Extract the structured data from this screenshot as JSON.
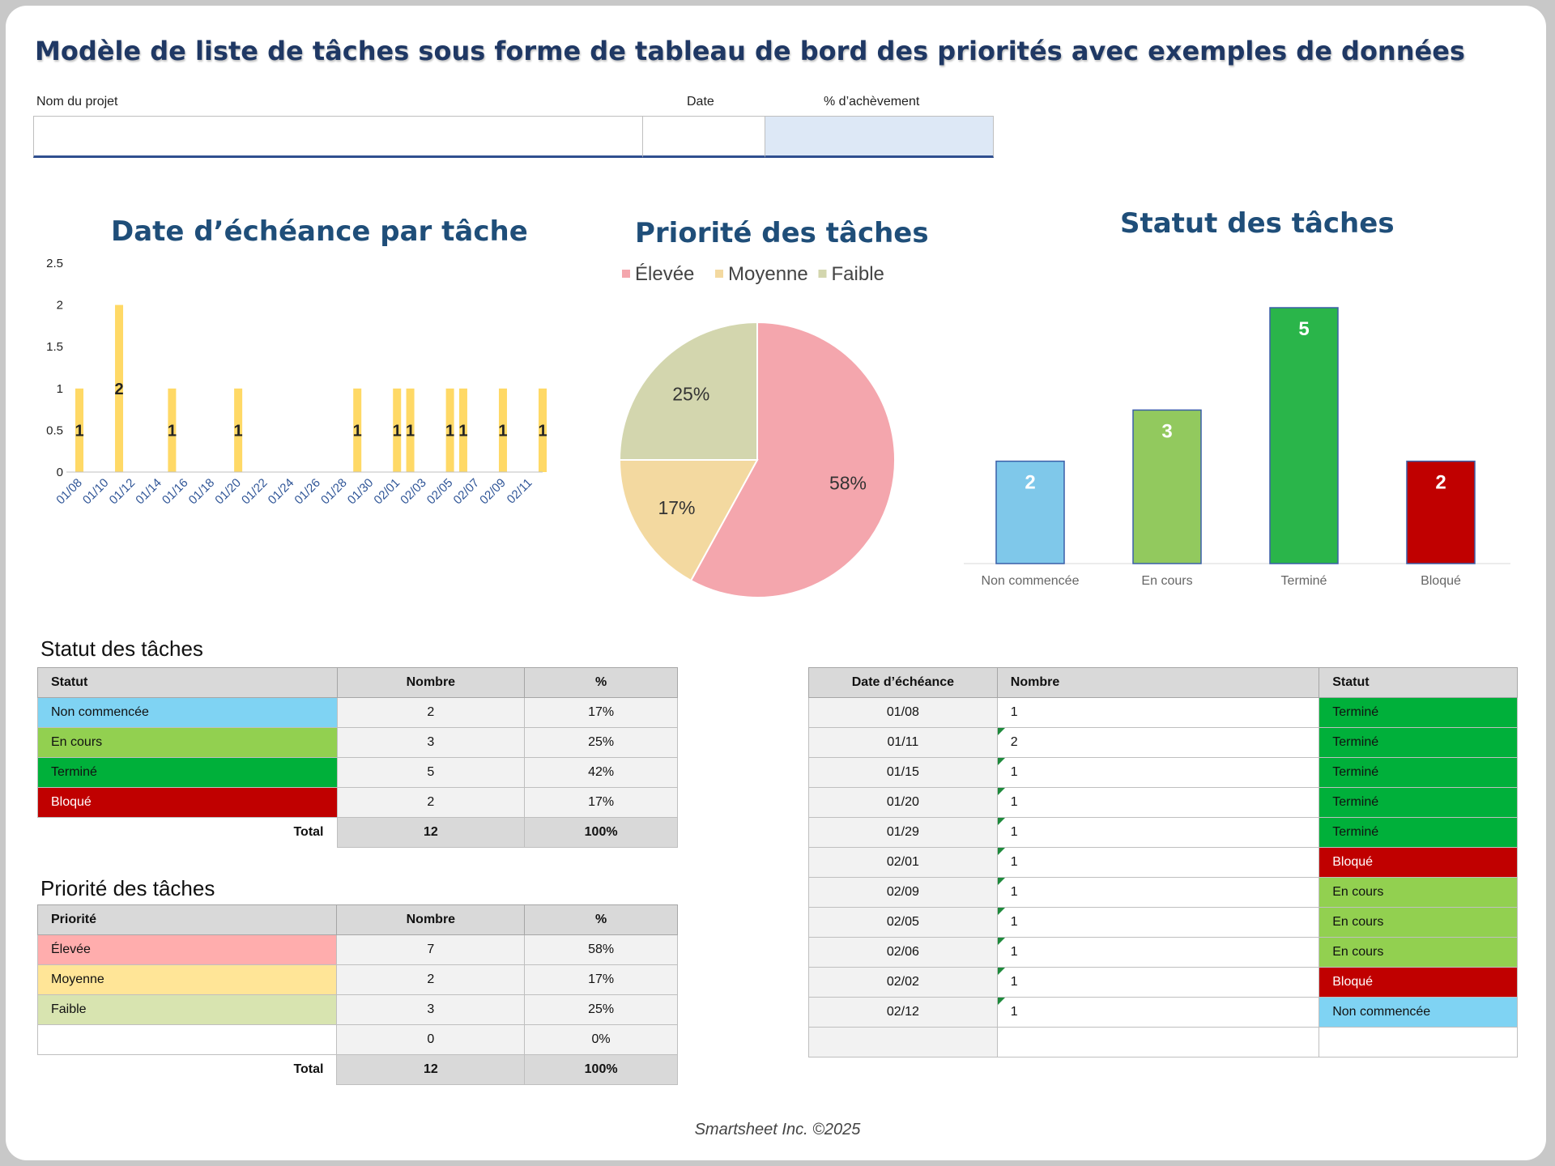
{
  "title": "Modèle de liste de tâches sous forme de tableau de bord des priorités avec exemples de données",
  "header": {
    "project_label": "Nom du projet",
    "date_label": "Date",
    "completion_label": "% d’achèvement",
    "project_value": "",
    "date_value": "",
    "completion_value": ""
  },
  "chart_data": [
    {
      "type": "bar",
      "title": "Date d’échéance par tâche",
      "ylim": [
        0,
        2.5
      ],
      "yticks": [
        "0",
        "0.5",
        "1",
        "1.5",
        "2",
        "2.5"
      ],
      "xtick_labels": [
        "01/08",
        "01/10",
        "01/12",
        "01/14",
        "01/16",
        "01/18",
        "01/20",
        "01/22",
        "01/24",
        "01/26",
        "01/28",
        "01/30",
        "02/01",
        "02/03",
        "02/05",
        "02/07",
        "02/09",
        "02/11"
      ],
      "categories": [
        "01/08",
        "01/11",
        "01/15",
        "01/20",
        "01/29",
        "02/01",
        "02/02",
        "02/05",
        "02/06",
        "02/09",
        "02/12"
      ],
      "values": [
        1,
        2,
        1,
        1,
        1,
        1,
        1,
        1,
        1,
        1,
        1
      ],
      "value_labels": [
        "1",
        "2",
        "1",
        "1",
        "1",
        "1",
        "1",
        "1",
        "1",
        "1",
        "1"
      ],
      "color": "#ffd966"
    },
    {
      "type": "pie",
      "title": "Priorité des tâches",
      "legend": [
        "Élevée",
        "Moyenne",
        "Faible"
      ],
      "values": [
        58,
        17,
        25
      ],
      "value_labels": [
        "58%",
        "17%",
        "25%"
      ],
      "colors": [
        "#f4a6ad",
        "#f3d9a0",
        "#d3d6ae"
      ],
      "legend_position": "top"
    },
    {
      "type": "bar",
      "title": "Statut des tâches",
      "categories": [
        "Non commencée",
        "En cours",
        "Terminé",
        "Bloqué"
      ],
      "values": [
        2,
        3,
        5,
        2
      ],
      "value_labels": [
        "2",
        "3",
        "5",
        "2"
      ],
      "colors": [
        "#7fc8ea",
        "#92c95e",
        "#2ab54a",
        "#c00000"
      ]
    }
  ],
  "status_table": {
    "title": "Statut des tâches",
    "headers": [
      "Statut",
      "Nombre",
      "%"
    ],
    "rows": [
      {
        "label": "Non commencée",
        "count": "2",
        "pct": "17%",
        "color": "#7fd3f3",
        "text_color": "#111111"
      },
      {
        "label": "En cours",
        "count": "3",
        "pct": "25%",
        "color": "#92d050",
        "text_color": "#111111"
      },
      {
        "label": "Terminé",
        "count": "5",
        "pct": "42%",
        "color": "#00b03a",
        "text_color": "#111111"
      },
      {
        "label": "Bloqué",
        "count": "2",
        "pct": "17%",
        "color": "#c00000",
        "text_color": "#ffffff"
      }
    ],
    "total_label": "Total",
    "total_count": "12",
    "total_pct": "100%"
  },
  "priority_table": {
    "title": "Priorité des tâches",
    "headers": [
      "Priorité",
      "Nombre",
      "%"
    ],
    "rows": [
      {
        "label": "Élevée",
        "count": "7",
        "pct": "58%",
        "color": "#ffadad"
      },
      {
        "label": "Moyenne",
        "count": "2",
        "pct": "17%",
        "color": "#ffe597"
      },
      {
        "label": "Faible",
        "count": "3",
        "pct": "25%",
        "color": "#d8e4b0"
      },
      {
        "label": "",
        "count": "0",
        "pct": "0%",
        "color": "#ffffff"
      }
    ],
    "total_label": "Total",
    "total_count": "12",
    "total_pct": "100%"
  },
  "due_table": {
    "headers": [
      "Date d’échéance",
      "Nombre",
      "Statut"
    ],
    "rows": [
      {
        "date": "01/08",
        "count": "1",
        "status": "Terminé",
        "color": "#00b03a",
        "tri": false
      },
      {
        "date": "01/11",
        "count": "2",
        "status": "Terminé",
        "color": "#00b03a",
        "tri": true
      },
      {
        "date": "01/15",
        "count": "1",
        "status": "Terminé",
        "color": "#00b03a",
        "tri": true
      },
      {
        "date": "01/20",
        "count": "1",
        "status": "Terminé",
        "color": "#00b03a",
        "tri": true
      },
      {
        "date": "01/29",
        "count": "1",
        "status": "Terminé",
        "color": "#00b03a",
        "tri": true
      },
      {
        "date": "02/01",
        "count": "1",
        "status": "Bloqué",
        "color": "#c00000",
        "tri": true,
        "light": true
      },
      {
        "date": "02/09",
        "count": "1",
        "status": "En cours",
        "color": "#92d050",
        "tri": true
      },
      {
        "date": "02/05",
        "count": "1",
        "status": "En cours",
        "color": "#92d050",
        "tri": true
      },
      {
        "date": "02/06",
        "count": "1",
        "status": "En cours",
        "color": "#92d050",
        "tri": true
      },
      {
        "date": "02/02",
        "count": "1",
        "status": "Bloqué",
        "color": "#c00000",
        "tri": true,
        "light": true
      },
      {
        "date": "02/12",
        "count": "1",
        "status": "Non commencée",
        "color": "#7fd3f3",
        "tri": true
      },
      {
        "date": "",
        "count": "",
        "status": "",
        "color": "#ffffff",
        "tri": false
      }
    ]
  },
  "footer": "Smartsheet Inc. ©2025"
}
